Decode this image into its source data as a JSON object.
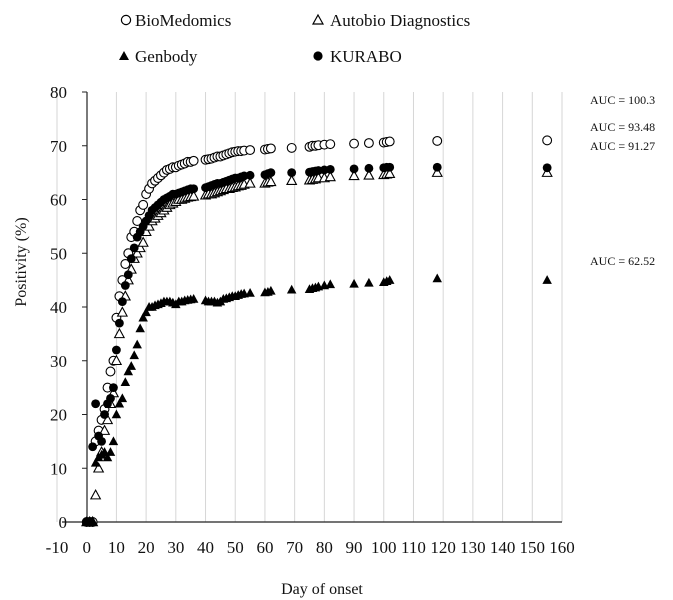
{
  "chart_data": {
    "type": "scatter",
    "xlabel": "Day of onset",
    "ylabel": "Positivity (%)",
    "xlim": [
      -10,
      160
    ],
    "ylim": [
      0,
      80
    ],
    "xticks": [
      "-10",
      "0",
      "10",
      "20",
      "30",
      "40",
      "50",
      "60",
      "70",
      "80",
      "90",
      "100",
      "110",
      "120",
      "130",
      "140",
      "150",
      "160"
    ],
    "yticks": [
      "0",
      "10",
      "20",
      "30",
      "40",
      "50",
      "60",
      "70",
      "80"
    ],
    "grid": "vertical",
    "legend": "top",
    "series": [
      {
        "name": "BioMedomics",
        "marker": "open-circle",
        "x": [
          0,
          1,
          2,
          3,
          4,
          5,
          6,
          7,
          8,
          9,
          10,
          11,
          12,
          13,
          14,
          15,
          16,
          17,
          18,
          19,
          20,
          21,
          22,
          23,
          24,
          25,
          26,
          27,
          28,
          29,
          30,
          31,
          32,
          33,
          34,
          35,
          36,
          40,
          41,
          42,
          43,
          44,
          45,
          46,
          47,
          48,
          49,
          50,
          51,
          52,
          53,
          55,
          60,
          61,
          62,
          69,
          75,
          76,
          77,
          78,
          80,
          82,
          90,
          95,
          100,
          101,
          102,
          118,
          155
        ],
        "y": [
          0,
          0,
          0,
          15,
          17,
          19,
          21,
          25,
          28,
          30,
          38,
          42,
          45,
          48,
          50,
          53,
          54,
          56,
          58,
          59,
          61,
          62,
          63,
          63.5,
          64,
          64.5,
          65,
          65.5,
          65.7,
          66,
          66,
          66.3,
          66.5,
          66.7,
          67,
          67,
          67.2,
          67.4,
          67.5,
          67.6,
          67.8,
          68,
          68,
          68.2,
          68.4,
          68.6,
          68.8,
          68.9,
          69,
          69,
          69.1,
          69.2,
          69.3,
          69.4,
          69.5,
          69.6,
          69.8,
          70,
          70,
          70.1,
          70.2,
          70.3,
          70.4,
          70.5,
          70.6,
          70.7,
          70.8,
          70.9,
          71
        ]
      },
      {
        "name": "Autobio Diagnostics",
        "marker": "open-triangle",
        "x": [
          0,
          1,
          2,
          3,
          4,
          5,
          6,
          7,
          8,
          9,
          10,
          11,
          12,
          13,
          14,
          15,
          16,
          17,
          18,
          19,
          20,
          21,
          22,
          23,
          24,
          25,
          26,
          27,
          28,
          29,
          30,
          31,
          32,
          33,
          34,
          35,
          36,
          40,
          41,
          42,
          43,
          44,
          45,
          46,
          47,
          48,
          49,
          50,
          51,
          52,
          53,
          55,
          60,
          61,
          62,
          69,
          75,
          76,
          77,
          78,
          80,
          82,
          90,
          95,
          100,
          101,
          102,
          118,
          155
        ],
        "y": [
          0,
          0,
          0,
          5,
          10,
          13,
          17,
          19,
          22,
          24,
          30,
          35,
          39,
          42,
          45,
          47,
          49,
          50,
          51,
          52,
          54,
          55,
          56,
          56.5,
          57,
          57.5,
          58,
          58.5,
          59,
          59.3,
          59.6,
          60,
          60,
          60.2,
          60.4,
          60.5,
          60.6,
          60.8,
          61,
          61,
          61.2,
          61.4,
          61.6,
          61.8,
          62,
          62,
          62.2,
          62.3,
          62.5,
          62.6,
          62.8,
          63,
          63,
          63.2,
          63.3,
          63.5,
          63.6,
          63.7,
          63.8,
          64,
          64,
          64.2,
          64.4,
          64.5,
          64.6,
          64.7,
          64.8,
          65,
          65
        ]
      },
      {
        "name": "Genbody",
        "marker": "filled-triangle",
        "x": [
          0,
          1,
          2,
          3,
          4,
          5,
          6,
          7,
          8,
          9,
          10,
          11,
          12,
          13,
          14,
          15,
          16,
          17,
          18,
          19,
          20,
          21,
          22,
          23,
          24,
          25,
          26,
          27,
          28,
          29,
          30,
          31,
          32,
          33,
          34,
          35,
          36,
          40,
          41,
          42,
          43,
          44,
          45,
          46,
          47,
          48,
          49,
          50,
          51,
          52,
          53,
          55,
          60,
          61,
          62,
          69,
          75,
          76,
          77,
          78,
          80,
          82,
          90,
          95,
          100,
          101,
          102,
          118,
          155
        ],
        "y": [
          0,
          0,
          0,
          11,
          12,
          12.5,
          13,
          12,
          13,
          15,
          20,
          22,
          23,
          26,
          28,
          29,
          31,
          33,
          36,
          38,
          39,
          40,
          40,
          40.3,
          40.5,
          40.7,
          41,
          41,
          41,
          40.8,
          40.5,
          41,
          41,
          41.2,
          41.3,
          41.4,
          41.5,
          41.2,
          41,
          41,
          41,
          40.8,
          41,
          41.5,
          41.6,
          41.8,
          42,
          42,
          42.2,
          42.4,
          42.5,
          42.6,
          42.7,
          42.8,
          43,
          43.2,
          43.3,
          43.5,
          43.6,
          43.8,
          44,
          44.2,
          44.3,
          44.5,
          44.6,
          44.8,
          45,
          45.3,
          45
        ]
      },
      {
        "name": "KURABO",
        "marker": "filled-circle",
        "x": [
          0,
          1,
          2,
          3,
          4,
          5,
          6,
          7,
          8,
          9,
          10,
          11,
          12,
          13,
          14,
          15,
          16,
          17,
          18,
          19,
          20,
          21,
          22,
          23,
          24,
          25,
          26,
          27,
          28,
          29,
          30,
          31,
          32,
          33,
          34,
          35,
          36,
          40,
          41,
          42,
          43,
          44,
          45,
          46,
          47,
          48,
          49,
          50,
          51,
          52,
          53,
          55,
          60,
          61,
          62,
          69,
          75,
          76,
          77,
          78,
          80,
          82,
          90,
          95,
          100,
          101,
          102,
          118,
          155
        ],
        "y": [
          0,
          0,
          14,
          22,
          16,
          15,
          20,
          22,
          23,
          25,
          32,
          37,
          41,
          44,
          46,
          49,
          51,
          53,
          54,
          55,
          56,
          57,
          58,
          58.5,
          59,
          59.5,
          60,
          60.3,
          60.6,
          61,
          61,
          61.2,
          61.4,
          61.6,
          61.8,
          62,
          62,
          62.2,
          62.4,
          62.6,
          62.8,
          63,
          63,
          63.2,
          63.4,
          63.6,
          63.8,
          64,
          64,
          64.2,
          64.4,
          64.5,
          64.6,
          64.8,
          65,
          65,
          65.1,
          65.2,
          65.3,
          65.4,
          65.5,
          65.6,
          65.7,
          65.8,
          65.9,
          66,
          66,
          66,
          65.9
        ]
      }
    ],
    "annotations": [
      "AUC = 100.3",
      "AUC = 93.48",
      "AUC = 91.27",
      "AUC = 62.52"
    ]
  }
}
